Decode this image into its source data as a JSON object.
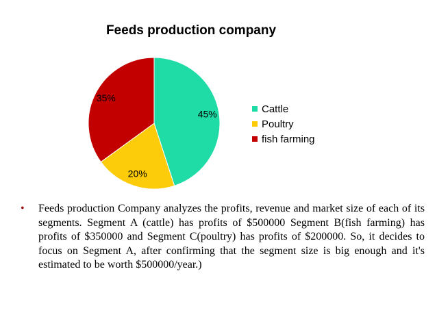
{
  "chart_data": {
    "type": "pie",
    "title": "Feeds production company",
    "slices": [
      {
        "label": "Cattle",
        "value": 45,
        "display": "45%",
        "color": "#1fdca6"
      },
      {
        "label": "Poultry",
        "value": 20,
        "display": "20%",
        "color": "#fccc0b"
      },
      {
        "label": "fish farming",
        "value": 35,
        "display": "35%",
        "color": "#c30000"
      }
    ],
    "legend_position": "right"
  },
  "bullet": {
    "marker": "•",
    "text": "Feeds production Company analyzes the profits, revenue and market size of each of its segments. Segment A (cattle) has profits of $500000 Segment B(fish farming) has profits of $350000 and Segment C(poultry) has profits of $200000. So, it decides to focus on Segment A, after confirming that the segment size is big enough and it's estimated to be worth $500000/year.)"
  }
}
